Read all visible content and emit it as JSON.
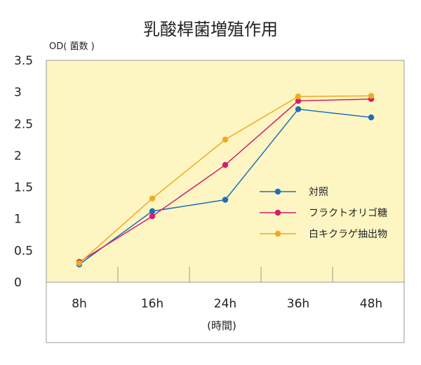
{
  "chart_data": {
    "type": "line",
    "title": "乳酸桿菌増殖作用",
    "ylabel": "OD( 菌数 )",
    "xlabel": "(時間)",
    "categories": [
      "8h",
      "16h",
      "24h",
      "36h",
      "48h"
    ],
    "yticks": [
      "0",
      "0.5",
      "1",
      "1.5",
      "2",
      "2.5",
      "3",
      "3.5"
    ],
    "ylim": [
      0,
      3.5
    ],
    "legend_position": "right",
    "grid": false,
    "series": [
      {
        "name": "対照",
        "color": "#1f6fba",
        "values": [
          0.28,
          1.12,
          1.3,
          2.73,
          2.6
        ]
      },
      {
        "name": "フラクトオリゴ糖",
        "color": "#d81b6a",
        "values": [
          0.32,
          1.04,
          1.85,
          2.86,
          2.89
        ]
      },
      {
        "name": "白キクラゲ抽出物",
        "color": "#f2a91f",
        "values": [
          0.3,
          1.32,
          2.25,
          2.93,
          2.94
        ]
      }
    ]
  }
}
